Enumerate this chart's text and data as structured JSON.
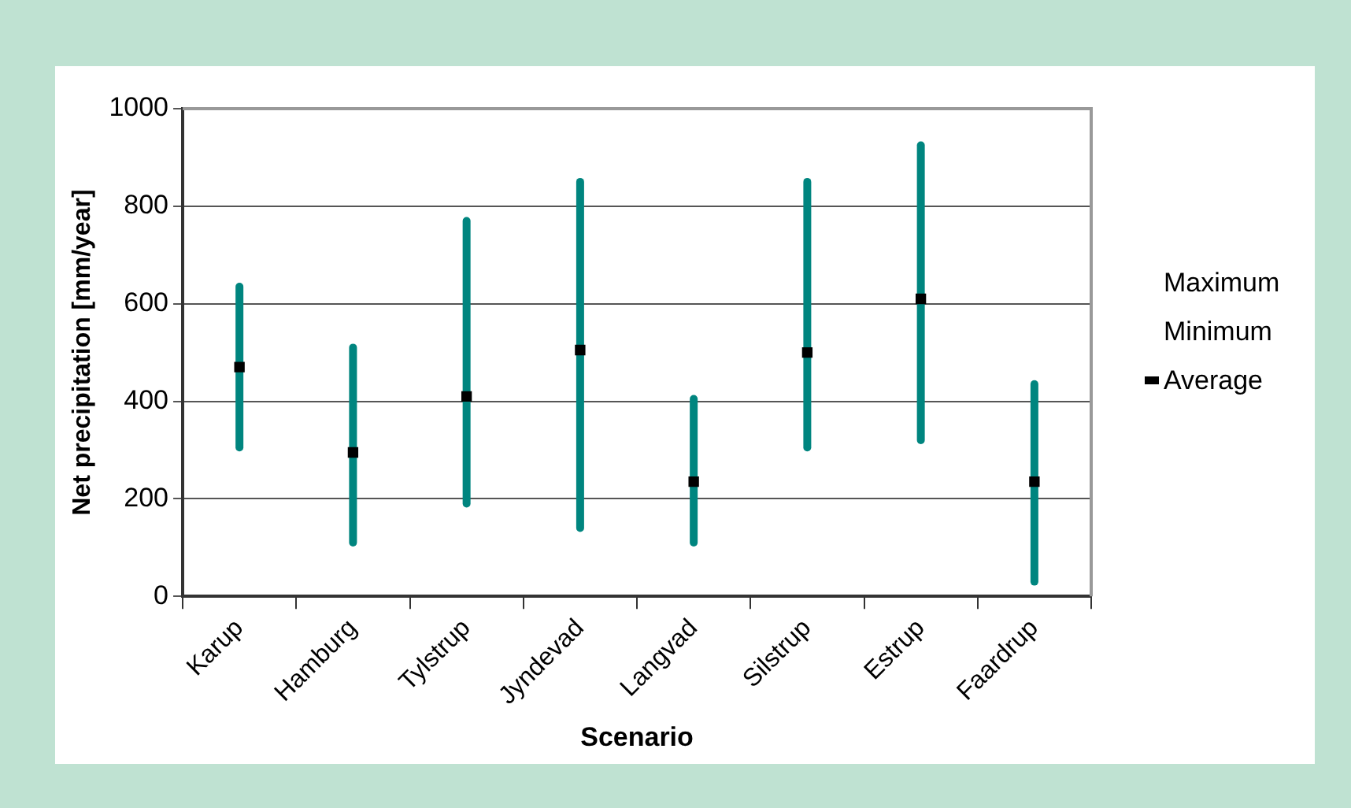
{
  "chart_data": {
    "type": "scatter",
    "xlabel": "Scenario",
    "ylabel": "Net precipitation [mm/year]",
    "categories": [
      "Karup",
      "Hamburg",
      "Tylstrup",
      "Jyndevad",
      "Langvad",
      "Silstrup",
      "Estrup",
      "Faardrup"
    ],
    "series": [
      {
        "name": "Average",
        "color": "#000000",
        "values": [
          470,
          295,
          410,
          505,
          235,
          500,
          610,
          235
        ],
        "errors": [
          [
            305,
            635
          ],
          [
            110,
            510
          ],
          [
            190,
            770
          ],
          [
            140,
            850
          ],
          [
            110,
            405
          ],
          [
            305,
            850
          ],
          [
            320,
            925
          ],
          [
            30,
            435
          ]
        ]
      }
    ],
    "annotations": [
      "Maximum",
      "Minimum"
    ],
    "ylim": [
      0,
      1000
    ],
    "yticks": [
      0,
      200,
      400,
      600,
      800,
      1000
    ],
    "grid": "y",
    "legend": "right",
    "marker": "square"
  }
}
